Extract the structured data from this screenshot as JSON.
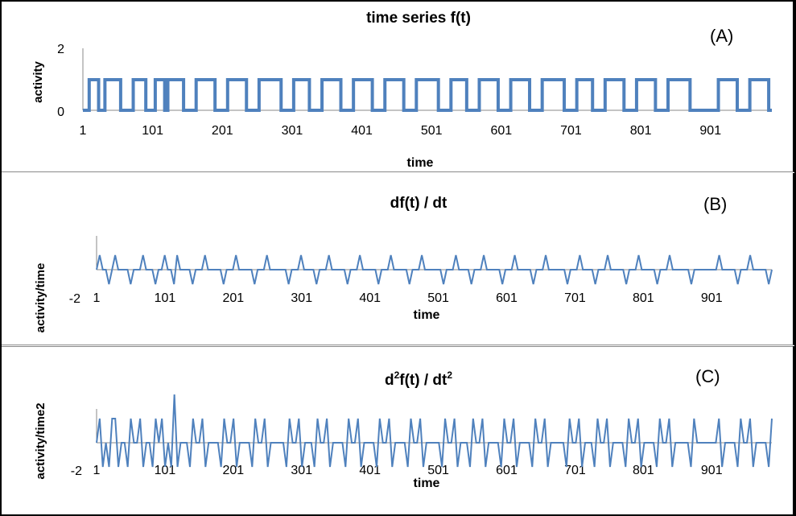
{
  "chart_data": [
    {
      "type": "line",
      "panel_tag": "(A)",
      "title": "time series f(t)",
      "xlabel": "time",
      "ylabel": "activity",
      "x_tick_labels": [
        "1",
        "101",
        "201",
        "301",
        "401",
        "501",
        "601",
        "701",
        "801",
        "901"
      ],
      "y_tick_labels": [
        "2",
        "0"
      ],
      "xlim": [
        1,
        989
      ],
      "ylim": [
        0,
        2
      ],
      "series_color": "#4f81bd",
      "series": [
        {
          "values": [
            0,
            0,
            1,
            1,
            1,
            0,
            0,
            1,
            1,
            1,
            1,
            1,
            0,
            0,
            0,
            0,
            1,
            1,
            1,
            1,
            0,
            0,
            0,
            1,
            1,
            1,
            0,
            1,
            1,
            1,
            1,
            1,
            0,
            0,
            0,
            0,
            1,
            1,
            1,
            1,
            1,
            1,
            0,
            0,
            0,
            0,
            1,
            1,
            1,
            1,
            1,
            1,
            0,
            0,
            0,
            0,
            1,
            1,
            1,
            1,
            1,
            1,
            1,
            0,
            0,
            0,
            0,
            1,
            1,
            1,
            1,
            1,
            0,
            0,
            0,
            0,
            1,
            1,
            1,
            1,
            1,
            1,
            0,
            0,
            0,
            0,
            1,
            1,
            1,
            1,
            1,
            1,
            0,
            0,
            0,
            0,
            1,
            1,
            1,
            1,
            1,
            1,
            0,
            0,
            0,
            0,
            1,
            1,
            1,
            1,
            1,
            1,
            1,
            0,
            0,
            0,
            0,
            1,
            1,
            1,
            1,
            1,
            0,
            0,
            0,
            0,
            1,
            1,
            1,
            1,
            1,
            1,
            0,
            0,
            0,
            0,
            1,
            1,
            1,
            1,
            1,
            1,
            0,
            0,
            0,
            0,
            1,
            1,
            1,
            1,
            1,
            1,
            1,
            0,
            0,
            0,
            0,
            1,
            1,
            1,
            1,
            1,
            0,
            0,
            0,
            0,
            1,
            1,
            1,
            1,
            1,
            1,
            0,
            0,
            0,
            0,
            1,
            1,
            1,
            1,
            1,
            1,
            0,
            0,
            0,
            0,
            1,
            1,
            1,
            1,
            1,
            1,
            1,
            0,
            0,
            0,
            0,
            0,
            0,
            0,
            0,
            0,
            1,
            1,
            1,
            1,
            1,
            1,
            0,
            0,
            0,
            0,
            1,
            1,
            1,
            1,
            1,
            1,
            0,
            0
          ]
        }
      ]
    },
    {
      "type": "line",
      "panel_tag": "(B)",
      "title": "df(t) / dt",
      "xlabel": "time",
      "ylabel": "activity/time",
      "x_tick_labels": [
        "1",
        "101",
        "201",
        "301",
        "401",
        "501",
        "601",
        "701",
        "801",
        "901"
      ],
      "y_tick_labels": [
        "-2"
      ],
      "xlim": [
        1,
        989
      ],
      "ylim": [
        -2,
        2
      ],
      "series_color": "#4f81bd",
      "series": [
        {
          "values": [
            0,
            1,
            0,
            0,
            -1,
            0,
            1,
            0,
            0,
            0,
            0,
            -1,
            0,
            0,
            0,
            1,
            0,
            0,
            0,
            -1,
            0,
            0,
            1,
            0,
            0,
            -1,
            1,
            0,
            0,
            0,
            0,
            -1,
            0,
            0,
            0,
            1,
            0,
            0,
            0,
            0,
            0,
            -1,
            0,
            0,
            0,
            1,
            0,
            0,
            0,
            0,
            0,
            -1,
            0,
            0,
            0,
            1,
            0,
            0,
            0,
            0,
            0,
            0,
            -1,
            0,
            0,
            0,
            1,
            0,
            0,
            0,
            0,
            -1,
            0,
            0,
            0,
            1,
            0,
            0,
            0,
            0,
            0,
            -1,
            0,
            0,
            0,
            1,
            0,
            0,
            0,
            0,
            0,
            -1,
            0,
            0,
            0,
            1,
            0,
            0,
            0,
            0,
            0,
            -1,
            0,
            0,
            0,
            1,
            0,
            0,
            0,
            0,
            0,
            0,
            -1,
            0,
            0,
            0,
            1,
            0,
            0,
            0,
            0,
            -1,
            0,
            0,
            0,
            1,
            0,
            0,
            0,
            0,
            0,
            -1,
            0,
            0,
            0,
            1,
            0,
            0,
            0,
            0,
            0,
            -1,
            0,
            0,
            0,
            1,
            0,
            0,
            0,
            0,
            0,
            0,
            -1,
            0,
            0,
            0,
            1,
            0,
            0,
            0,
            0,
            -1,
            0,
            0,
            0,
            1,
            0,
            0,
            0,
            0,
            0,
            -1,
            0,
            0,
            0,
            1,
            0,
            0,
            0,
            0,
            0,
            -1,
            0,
            0,
            0,
            1,
            0,
            0,
            0,
            0,
            0,
            0,
            -1,
            0,
            0,
            0,
            0,
            0,
            0,
            0,
            0,
            1,
            0,
            0,
            0,
            0,
            0,
            -1,
            0,
            0,
            0,
            1,
            0,
            0,
            0,
            0,
            0,
            -1,
            0
          ]
        }
      ]
    },
    {
      "type": "line",
      "panel_tag": "(C)",
      "title_parts": [
        "d",
        "2",
        "f(t) / dt",
        "2"
      ],
      "xlabel": "time",
      "ylabel": "activity/time2",
      "x_tick_labels": [
        "1",
        "101",
        "201",
        "301",
        "401",
        "501",
        "601",
        "701",
        "801",
        "901"
      ],
      "y_tick_labels": [
        "-2"
      ],
      "xlim": [
        1,
        989
      ],
      "ylim": [
        -2,
        2
      ],
      "series_color": "#4f81bd",
      "series": [
        {
          "values": [
            0,
            1,
            -1,
            0,
            -1,
            1,
            1,
            -1,
            0,
            0,
            -1,
            1,
            0,
            0,
            1,
            -1,
            0,
            0,
            -1,
            1,
            0,
            1,
            -1,
            0,
            -1,
            2,
            -1,
            0,
            0,
            0,
            -1,
            1,
            0,
            0,
            1,
            -1,
            0,
            0,
            0,
            0,
            -1,
            1,
            0,
            0,
            1,
            -1,
            0,
            0,
            0,
            0,
            -1,
            1,
            0,
            0,
            1,
            -1,
            0,
            0,
            0,
            0,
            0,
            -1,
            1,
            0,
            0,
            1,
            -1,
            0,
            0,
            0,
            -1,
            1,
            0,
            0,
            1,
            -1,
            0,
            0,
            0,
            0,
            -1,
            1,
            0,
            0,
            1,
            -1,
            0,
            0,
            0,
            0,
            -1,
            1,
            0,
            0,
            1,
            -1,
            0,
            0,
            0,
            0,
            -1,
            1,
            0,
            0,
            1,
            -1,
            0,
            0,
            0,
            0,
            0,
            -1,
            1,
            0,
            0,
            1,
            -1,
            0,
            0,
            0,
            -1,
            1,
            0,
            0,
            1,
            -1,
            0,
            0,
            0,
            0,
            -1,
            1,
            0,
            0,
            1,
            -1,
            0,
            0,
            0,
            0,
            -1,
            1,
            0,
            0,
            1,
            -1,
            0,
            0,
            0,
            0,
            0,
            -1,
            1,
            0,
            0,
            1,
            -1,
            0,
            0,
            0,
            -1,
            1,
            0,
            0,
            1,
            -1,
            0,
            0,
            0,
            0,
            -1,
            1,
            0,
            0,
            1,
            -1,
            0,
            0,
            0,
            0,
            -1,
            1,
            0,
            0,
            1,
            -1,
            0,
            0,
            0,
            0,
            0,
            -1,
            1,
            0,
            0,
            0,
            0,
            0,
            0,
            0,
            1,
            -1,
            0,
            0,
            0,
            0,
            -1,
            1,
            0,
            0,
            1,
            -1,
            0,
            0,
            0,
            0,
            -1,
            1
          ]
        }
      ]
    }
  ]
}
